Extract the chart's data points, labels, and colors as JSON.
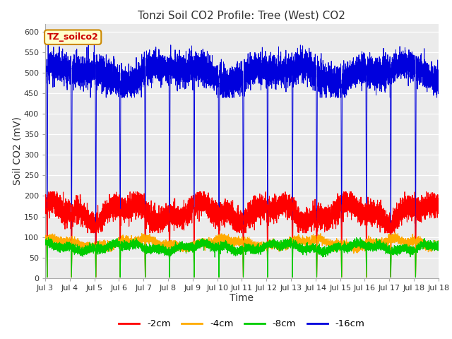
{
  "title": "Tonzi Soil CO2 Profile: Tree (West) CO2",
  "xlabel": "Time",
  "ylabel": "Soil CO2 (mV)",
  "ylim": [
    0,
    620
  ],
  "yticks": [
    0,
    50,
    100,
    150,
    200,
    250,
    300,
    350,
    400,
    450,
    500,
    550,
    600
  ],
  "legend_labels": [
    "-2cm",
    "-4cm",
    "-8cm",
    "-16cm"
  ],
  "legend_colors": [
    "#ff0000",
    "#ffaa00",
    "#00cc00",
    "#0000dd"
  ],
  "line_colors": {
    "2cm": "#ff0000",
    "4cm": "#ffaa00",
    "8cm": "#00cc00",
    "16cm": "#0000dd"
  },
  "annotation_text": "TZ_soilco2",
  "annotation_color": "#cc0000",
  "annotation_bg": "#ffffcc",
  "annotation_border": "#cc8800",
  "background_color": "#ebebeb",
  "title_fontsize": 11,
  "axis_label_fontsize": 10,
  "tick_fontsize": 8,
  "figsize": [
    6.4,
    4.8
  ],
  "dpi": 100
}
